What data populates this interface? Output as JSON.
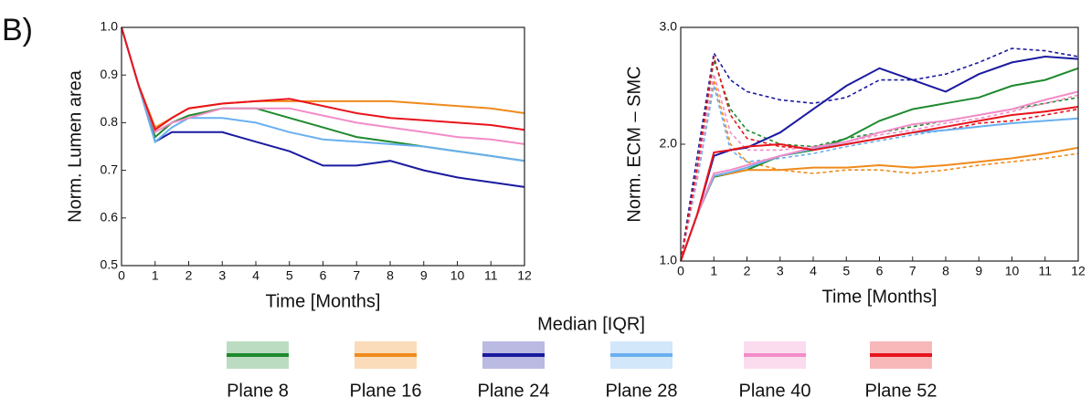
{
  "panel_label": "B)",
  "legend": {
    "title": "Median [IQR]",
    "entries": [
      {
        "name": "Plane 8",
        "color": "#1e8a2e"
      },
      {
        "name": "Plane 16",
        "color": "#f08a1c"
      },
      {
        "name": "Plane 24",
        "color": "#1a1aa0"
      },
      {
        "name": "Plane 28",
        "color": "#6ab0f0"
      },
      {
        "name": "Plane 40",
        "color": "#f28cc8"
      },
      {
        "name": "Plane 52",
        "color": "#e8141c"
      }
    ]
  },
  "chart_data": [
    {
      "type": "line",
      "y_label": "Norm. Lumen area",
      "x_label": "Time [Months]",
      "x": [
        0,
        0.5,
        1,
        1.5,
        2,
        3,
        4,
        5,
        6,
        7,
        8,
        9,
        10,
        11,
        12
      ],
      "xlim": [
        0,
        12
      ],
      "xticks": [
        0,
        1,
        2,
        3,
        4,
        5,
        6,
        7,
        8,
        9,
        10,
        11,
        12
      ],
      "ylim": [
        0.5,
        1
      ],
      "yticks": [
        0.5,
        0.6,
        0.7,
        0.8,
        0.9,
        {
          "value": 1,
          "label": "1.0"
        }
      ],
      "series": [
        {
          "color": "#1e8a2e",
          "line_style": "solid",
          "values": [
            1,
            0.88,
            0.77,
            0.8,
            0.815,
            0.83,
            0.83,
            0.81,
            0.79,
            0.77,
            0.76,
            0.75,
            0.74,
            0.73,
            0.72
          ]
        },
        {
          "color": "#f08a1c",
          "line_style": "solid",
          "values": [
            1,
            0.88,
            0.79,
            0.81,
            0.83,
            0.84,
            0.845,
            0.845,
            0.845,
            0.845,
            0.845,
            0.84,
            0.835,
            0.83,
            0.82
          ]
        },
        {
          "color": "#1a1aa0",
          "line_style": "solid",
          "values": [
            1,
            0.88,
            0.76,
            0.78,
            0.78,
            0.78,
            0.76,
            0.74,
            0.71,
            0.71,
            0.72,
            0.7,
            0.685,
            0.675,
            0.665
          ]
        },
        {
          "color": "#6ab0f0",
          "line_style": "solid",
          "values": [
            1,
            0.88,
            0.76,
            0.79,
            0.81,
            0.81,
            0.8,
            0.78,
            0.765,
            0.76,
            0.755,
            0.75,
            0.74,
            0.73,
            0.72
          ]
        },
        {
          "color": "#f28cc8",
          "line_style": "solid",
          "values": [
            1,
            0.88,
            0.78,
            0.8,
            0.81,
            0.83,
            0.83,
            0.83,
            0.815,
            0.8,
            0.79,
            0.78,
            0.77,
            0.765,
            0.755
          ]
        },
        {
          "color": "#e8141c",
          "line_style": "solid",
          "values": [
            1,
            0.88,
            0.785,
            0.81,
            0.83,
            0.84,
            0.845,
            0.85,
            0.835,
            0.82,
            0.81,
            0.805,
            0.8,
            0.795,
            0.785
          ]
        }
      ]
    },
    {
      "type": "line",
      "y_label": "Norm. ECM – SMC",
      "x_label": "Time [Months]",
      "x": [
        0,
        0.5,
        1,
        1.5,
        2,
        3,
        4,
        5,
        6,
        7,
        8,
        9,
        10,
        11,
        12
      ],
      "xlim": [
        0,
        12
      ],
      "xticks": [
        0,
        1,
        2,
        3,
        4,
        5,
        6,
        7,
        8,
        9,
        10,
        11,
        12
      ],
      "ylim": [
        1,
        3
      ],
      "yticks": [
        {
          "value": 1,
          "label": "1.0"
        },
        {
          "value": 2,
          "label": "2.0"
        },
        {
          "value": 3,
          "label": "3.0"
        }
      ],
      "series": [
        {
          "color": "#1e8a2e",
          "line_style": "dashed",
          "values": [
            1,
            1.8,
            2.72,
            2.3,
            2.12,
            2,
            1.98,
            2.05,
            2.1,
            2.15,
            2.2,
            2.25,
            2.3,
            2.35,
            2.4
          ]
        },
        {
          "color": "#f08a1c",
          "line_style": "dashed",
          "values": [
            1,
            1.7,
            2.55,
            2,
            1.85,
            1.78,
            1.75,
            1.78,
            1.78,
            1.75,
            1.78,
            1.82,
            1.85,
            1.88,
            1.92
          ]
        },
        {
          "color": "#1a1aa0",
          "line_style": "dashed",
          "values": [
            1,
            1.9,
            2.78,
            2.55,
            2.45,
            2.38,
            2.35,
            2.4,
            2.55,
            2.55,
            2.6,
            2.7,
            2.82,
            2.8,
            2.75
          ]
        },
        {
          "color": "#6ab0f0",
          "line_style": "dashed",
          "values": [
            1,
            1.7,
            2.5,
            1.95,
            1.85,
            1.88,
            1.92,
            1.98,
            2.03,
            2.08,
            2.12,
            2.15,
            2.18,
            2.2,
            2.22
          ]
        },
        {
          "color": "#f28cc8",
          "line_style": "dashed",
          "values": [
            1,
            1.75,
            2.6,
            2.1,
            1.95,
            1.95,
            1.98,
            2.02,
            2.08,
            2.12,
            2.18,
            2.22,
            2.28,
            2.35,
            2.42
          ]
        },
        {
          "color": "#e8141c",
          "line_style": "dashed",
          "values": [
            1,
            1.8,
            2.75,
            2.25,
            2.05,
            1.98,
            1.96,
            2,
            2.05,
            2.1,
            2.12,
            2.18,
            2.2,
            2.25,
            2.3
          ]
        },
        {
          "color": "#1e8a2e",
          "line_style": "solid",
          "values": [
            1,
            1.4,
            1.72,
            1.75,
            1.78,
            1.9,
            1.95,
            2.05,
            2.2,
            2.3,
            2.35,
            2.4,
            2.5,
            2.55,
            2.65
          ]
        },
        {
          "color": "#f08a1c",
          "line_style": "solid",
          "values": [
            1,
            1.4,
            1.73,
            1.75,
            1.78,
            1.78,
            1.8,
            1.8,
            1.82,
            1.8,
            1.82,
            1.85,
            1.88,
            1.92,
            1.97
          ]
        },
        {
          "color": "#1a1aa0",
          "line_style": "solid",
          "values": [
            1,
            1.4,
            1.9,
            1.95,
            1.97,
            2.1,
            2.3,
            2.5,
            2.65,
            2.55,
            2.45,
            2.6,
            2.7,
            2.75,
            2.73
          ]
        },
        {
          "color": "#6ab0f0",
          "line_style": "solid",
          "values": [
            1,
            1.4,
            1.73,
            1.76,
            1.8,
            1.9,
            1.96,
            2,
            2.05,
            2.1,
            2.12,
            2.15,
            2.18,
            2.2,
            2.22
          ]
        },
        {
          "color": "#f28cc8",
          "line_style": "solid",
          "values": [
            1,
            1.4,
            1.75,
            1.78,
            1.82,
            1.9,
            1.97,
            2.02,
            2.1,
            2.17,
            2.2,
            2.25,
            2.3,
            2.38,
            2.45
          ]
        },
        {
          "color": "#e8141c",
          "line_style": "solid",
          "values": [
            1,
            1.4,
            1.93,
            1.95,
            1.98,
            2,
            1.95,
            2,
            2.05,
            2.1,
            2.15,
            2.2,
            2.25,
            2.28,
            2.32
          ]
        }
      ]
    }
  ]
}
